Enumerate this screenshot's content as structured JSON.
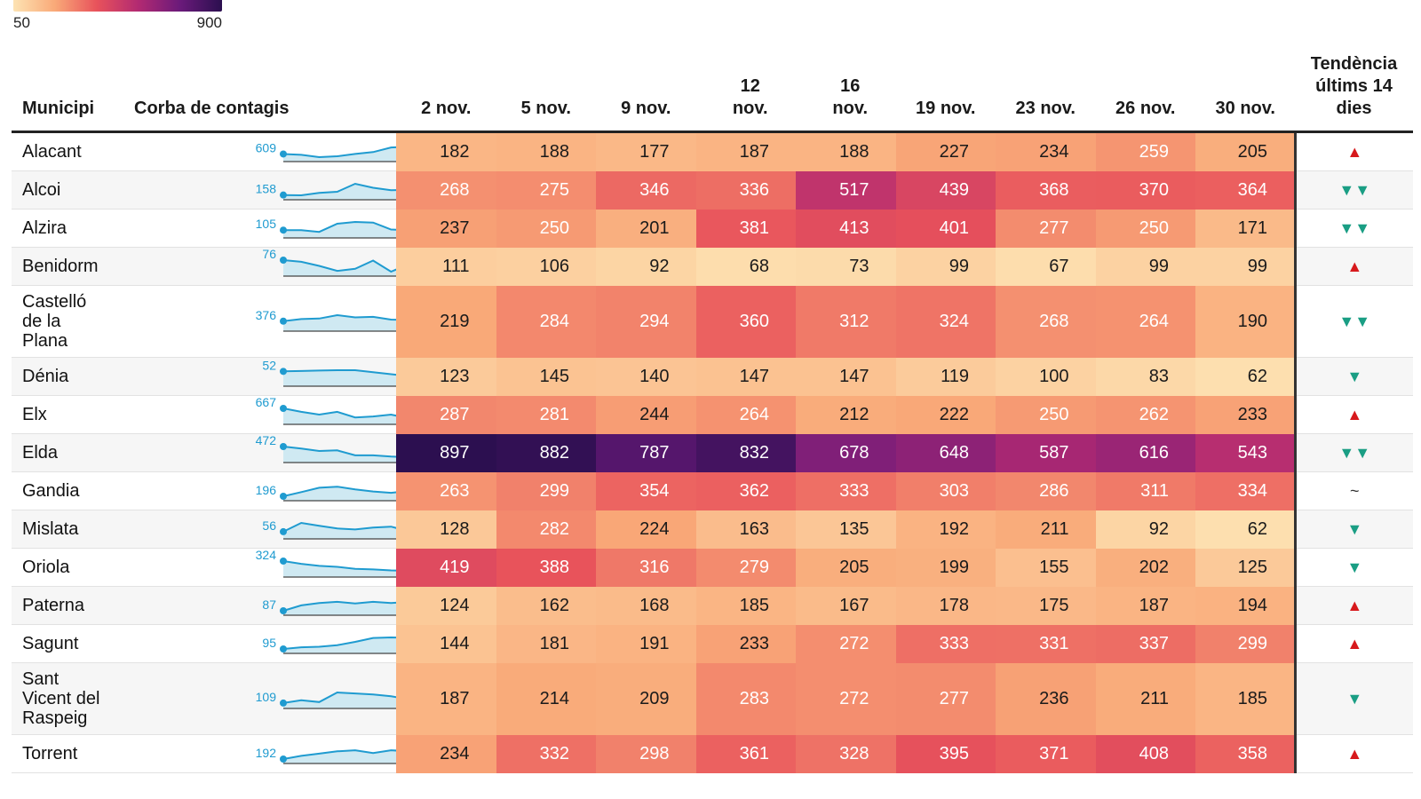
{
  "legend": {
    "min_label": "50",
    "max_label": "900"
  },
  "chart_data": {
    "type": "table",
    "color_scale": {
      "min": 50,
      "max": 900,
      "colors": [
        "#fde3b3",
        "#f9a978",
        "#e8525b",
        "#b22a72",
        "#6a1a7a",
        "#2b0f4f"
      ]
    },
    "headers": {
      "municipality": "Municipi",
      "curve": "Corba de contagis",
      "dates": [
        "2 nov.",
        "5 nov.",
        "9 nov.",
        "12 nov.",
        "16 nov.",
        "19 nov.",
        "23 nov.",
        "26 nov.",
        "30 nov."
      ],
      "trend": "Tendència últims 14 dies"
    },
    "rows": [
      {
        "name": "Alacant",
        "spark": [
          609,
          600,
          575,
          585,
          610,
          630,
          680,
          689,
          700,
          689
        ],
        "start": "609",
        "end": "689",
        "values": [
          182,
          188,
          177,
          187,
          188,
          227,
          234,
          259,
          205
        ],
        "trend": "▲",
        "trend_type": "up"
      },
      {
        "name": "Alcoi",
        "spark": [
          158,
          155,
          180,
          190,
          270,
          230,
          205,
          210,
          215,
          215
        ],
        "start": "158",
        "end": "215",
        "values": [
          268,
          275,
          346,
          336,
          517,
          439,
          368,
          370,
          364
        ],
        "trend": "▼▼",
        "trend_type": "down"
      },
      {
        "name": "Alzira",
        "spark": [
          105,
          105,
          90,
          160,
          175,
          170,
          110,
          105,
          95,
          76
        ],
        "start": "105",
        "end": "76",
        "values": [
          237,
          250,
          201,
          381,
          413,
          401,
          277,
          250,
          171
        ],
        "trend": "▼▼",
        "trend_type": "down"
      },
      {
        "name": "Benidorm",
        "spark": [
          76,
          72,
          62,
          50,
          55,
          75,
          48,
          66,
          68,
          68
        ],
        "start": "76",
        "end": "68",
        "values": [
          111,
          106,
          92,
          68,
          73,
          99,
          67,
          99,
          99
        ],
        "trend": "▲",
        "trend_type": "up"
      },
      {
        "name": "Castelló de la Plana",
        "spark": [
          376,
          395,
          400,
          430,
          410,
          415,
          390,
          385,
          360,
          326
        ],
        "start": "376",
        "end": "326",
        "values": [
          219,
          284,
          294,
          360,
          312,
          324,
          268,
          264,
          190
        ],
        "trend": "▼▼",
        "trend_type": "down"
      },
      {
        "name": "Dénia",
        "spark": [
          52,
          53,
          54,
          55,
          55,
          50,
          45,
          40,
          33,
          26
        ],
        "start": "52",
        "end": "26",
        "values": [
          123,
          145,
          140,
          147,
          147,
          119,
          100,
          83,
          62
        ],
        "trend": "▼",
        "trend_type": "down"
      },
      {
        "name": "Elx",
        "spark": [
          667,
          630,
          600,
          630,
          570,
          580,
          600,
          560,
          590,
          543
        ],
        "start": "667",
        "end": "543",
        "values": [
          287,
          281,
          244,
          264,
          212,
          222,
          250,
          262,
          233
        ],
        "trend": "▲",
        "trend_type": "up"
      },
      {
        "name": "Elda",
        "spark": [
          472,
          440,
          400,
          410,
          330,
          330,
          310,
          300,
          310,
          286
        ],
        "start": "472",
        "end": "286",
        "values": [
          897,
          882,
          787,
          832,
          678,
          648,
          587,
          616,
          543
        ],
        "trend": "▼▼",
        "trend_type": "down"
      },
      {
        "name": "Gandia",
        "spark": [
          196,
          215,
          235,
          240,
          228,
          218,
          212,
          220,
          235,
          249
        ],
        "start": "196",
        "end": "249",
        "values": [
          263,
          299,
          354,
          362,
          333,
          303,
          286,
          311,
          334
        ],
        "trend": "~",
        "trend_type": "flat"
      },
      {
        "name": "Mislata",
        "spark": [
          56,
          150,
          120,
          90,
          80,
          100,
          110,
          60,
          40,
          27
        ],
        "start": "56",
        "end": "27",
        "values": [
          128,
          282,
          224,
          163,
          135,
          192,
          211,
          92,
          62
        ],
        "trend": "▼",
        "trend_type": "down"
      },
      {
        "name": "Oriola",
        "spark": [
          324,
          270,
          230,
          210,
          170,
          160,
          140,
          130,
          120,
          97
        ],
        "start": "324",
        "end": "97",
        "values": [
          419,
          388,
          316,
          279,
          205,
          199,
          155,
          202,
          125
        ],
        "trend": "▼",
        "trend_type": "down"
      },
      {
        "name": "Paterna",
        "spark": [
          87,
          110,
          120,
          125,
          118,
          125,
          120,
          125,
          130,
          136
        ],
        "start": "87",
        "end": "136",
        "values": [
          124,
          162,
          168,
          185,
          167,
          178,
          175,
          187,
          194
        ],
        "trend": "▲",
        "trend_type": "up"
      },
      {
        "name": "Sagunt",
        "spark": [
          95,
          110,
          115,
          130,
          160,
          195,
          200,
          195,
          200,
          198
        ],
        "start": "95",
        "end": "198",
        "values": [
          144,
          181,
          191,
          233,
          272,
          333,
          331,
          337,
          299
        ],
        "trend": "▲",
        "trend_type": "up"
      },
      {
        "name": "Sant Vicent del Raspeig",
        "spark": [
          109,
          112,
          110,
          120,
          119,
          118,
          116,
          113,
          110,
          108
        ],
        "start": "109",
        "end": "108",
        "values": [
          187,
          214,
          209,
          283,
          272,
          277,
          236,
          211,
          185
        ],
        "trend": "▼",
        "trend_type": "down"
      },
      {
        "name": "Torrent",
        "spark": [
          192,
          220,
          240,
          260,
          270,
          245,
          270,
          260,
          280,
          294
        ],
        "start": "192",
        "end": "294",
        "values": [
          234,
          332,
          298,
          361,
          328,
          395,
          371,
          408,
          358
        ],
        "trend": "▲",
        "trend_type": "up"
      }
    ]
  }
}
